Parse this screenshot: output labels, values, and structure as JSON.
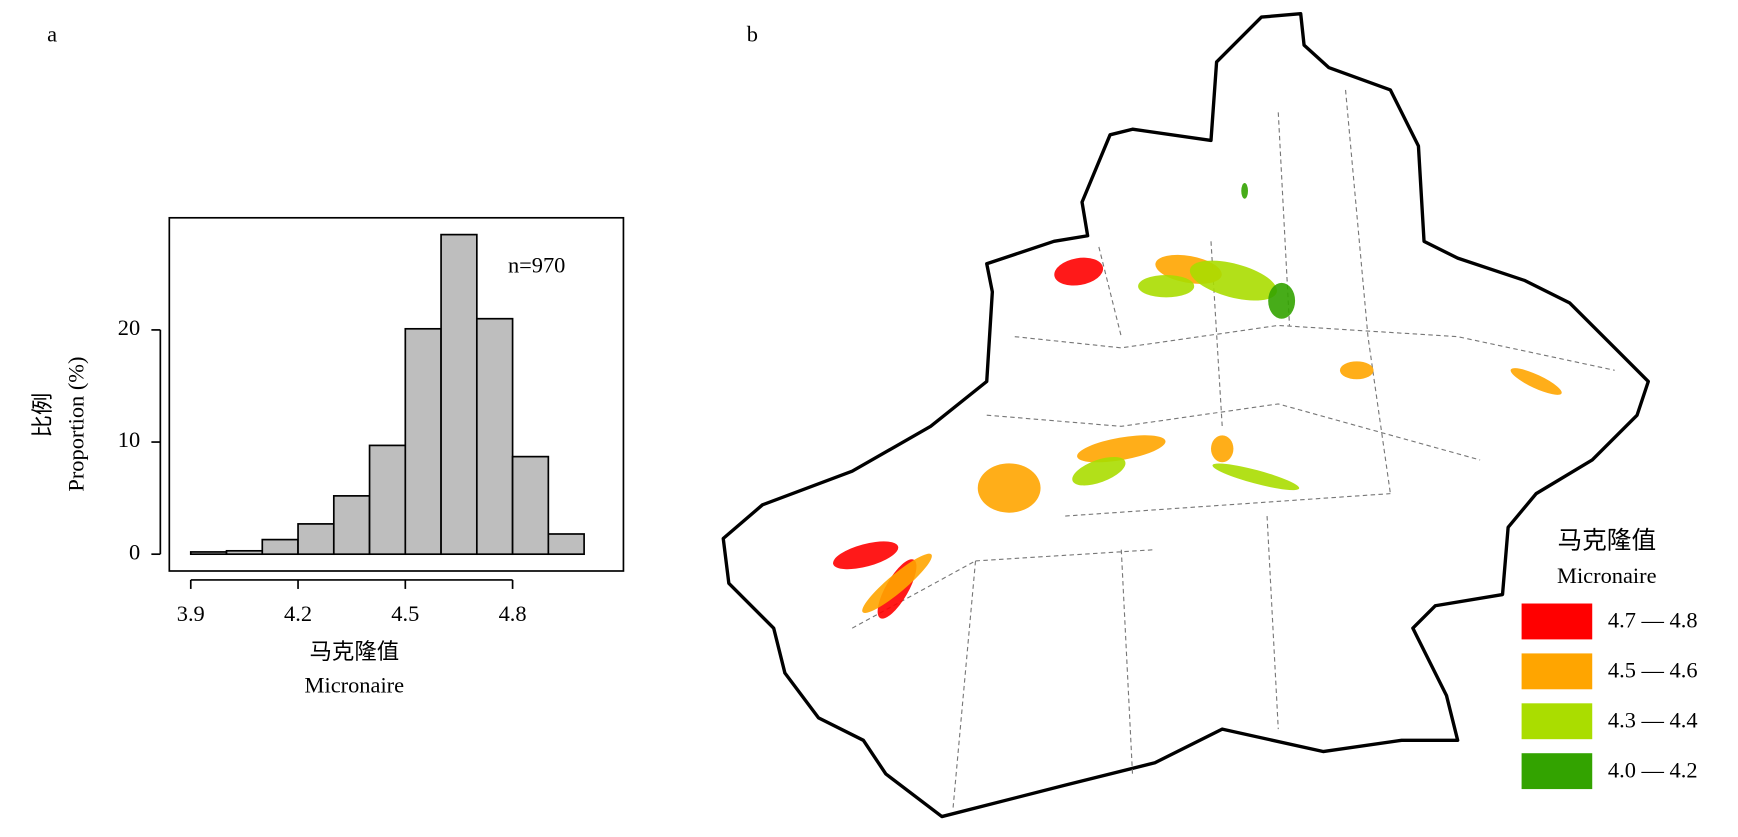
{
  "chart_data": [
    {
      "type": "histogram",
      "panel": "a",
      "bins": [
        3.9,
        4.0,
        4.1,
        4.2,
        4.3,
        4.4,
        4.5,
        4.6,
        4.7,
        4.8,
        4.9,
        5.0
      ],
      "counts": [
        0.2,
        0.3,
        1.3,
        2.7,
        5.2,
        9.7,
        20.1,
        28.5,
        21,
        8.7,
        1.8
      ],
      "color": "#bebebe",
      "xlim": [
        3.84,
        5.11
      ],
      "xticks": [
        3.9,
        4.2,
        4.5,
        4.8
      ],
      "ylim": [
        -1.5,
        30
      ],
      "yticks": [
        0,
        10,
        20
      ],
      "annotation": "n=970",
      "ylabel": "比例",
      "ylabel_en": "Proportion (%)",
      "xlabel": "马克隆值",
      "xlabel_en": "Micronaire"
    },
    {
      "type": "map",
      "panel": "b",
      "legend_title": "马克隆值",
      "legend_subtitle": "Micronaire",
      "legend": [
        {
          "label": "4.7 — 4.8",
          "color": "#ff0000"
        },
        {
          "label": "4.5 — 4.6",
          "color": "#ffa500"
        },
        {
          "label": "4.3 — 4.4",
          "color": "#aadd00"
        },
        {
          "label": "4.0 — 4.2",
          "color": "#33a300"
        }
      ]
    }
  ]
}
